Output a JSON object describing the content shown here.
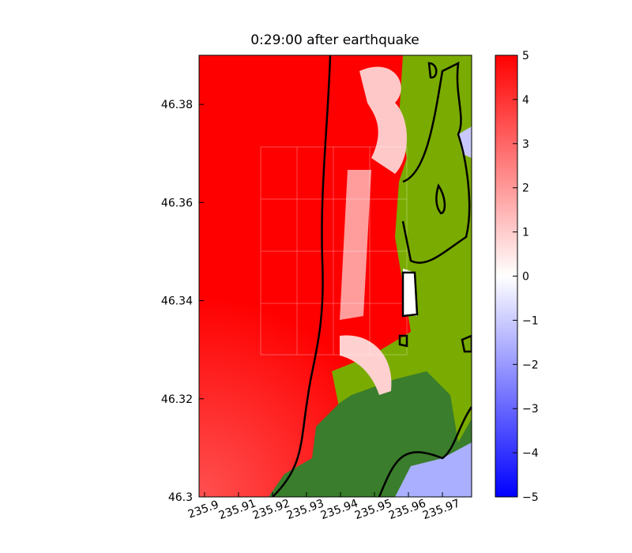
{
  "chart_data": {
    "type": "heatmap",
    "title": "0:29:00 after earthquake",
    "xlim": [
      235.8984,
      235.9786
    ],
    "xticks": [
      235.9,
      235.91,
      235.92,
      235.93,
      235.94,
      235.95,
      235.96,
      235.97
    ],
    "ylim": [
      46.3,
      46.39
    ],
    "yticks": [
      46.3,
      46.32,
      46.34,
      46.36,
      46.38
    ],
    "colorbar": {
      "lim": [
        -5,
        5
      ],
      "colors": [
        "#0000ff",
        "#ffffff",
        "#ff0000"
      ],
      "ticks": [
        {
          "value": -5,
          "label": "−5"
        },
        {
          "value": -4,
          "label": "−4"
        },
        {
          "value": -3,
          "label": "−3"
        },
        {
          "value": -2,
          "label": "−2"
        },
        {
          "value": -1,
          "label": "−1"
        },
        0,
        1,
        2,
        3,
        4,
        5
      ]
    }
  }
}
